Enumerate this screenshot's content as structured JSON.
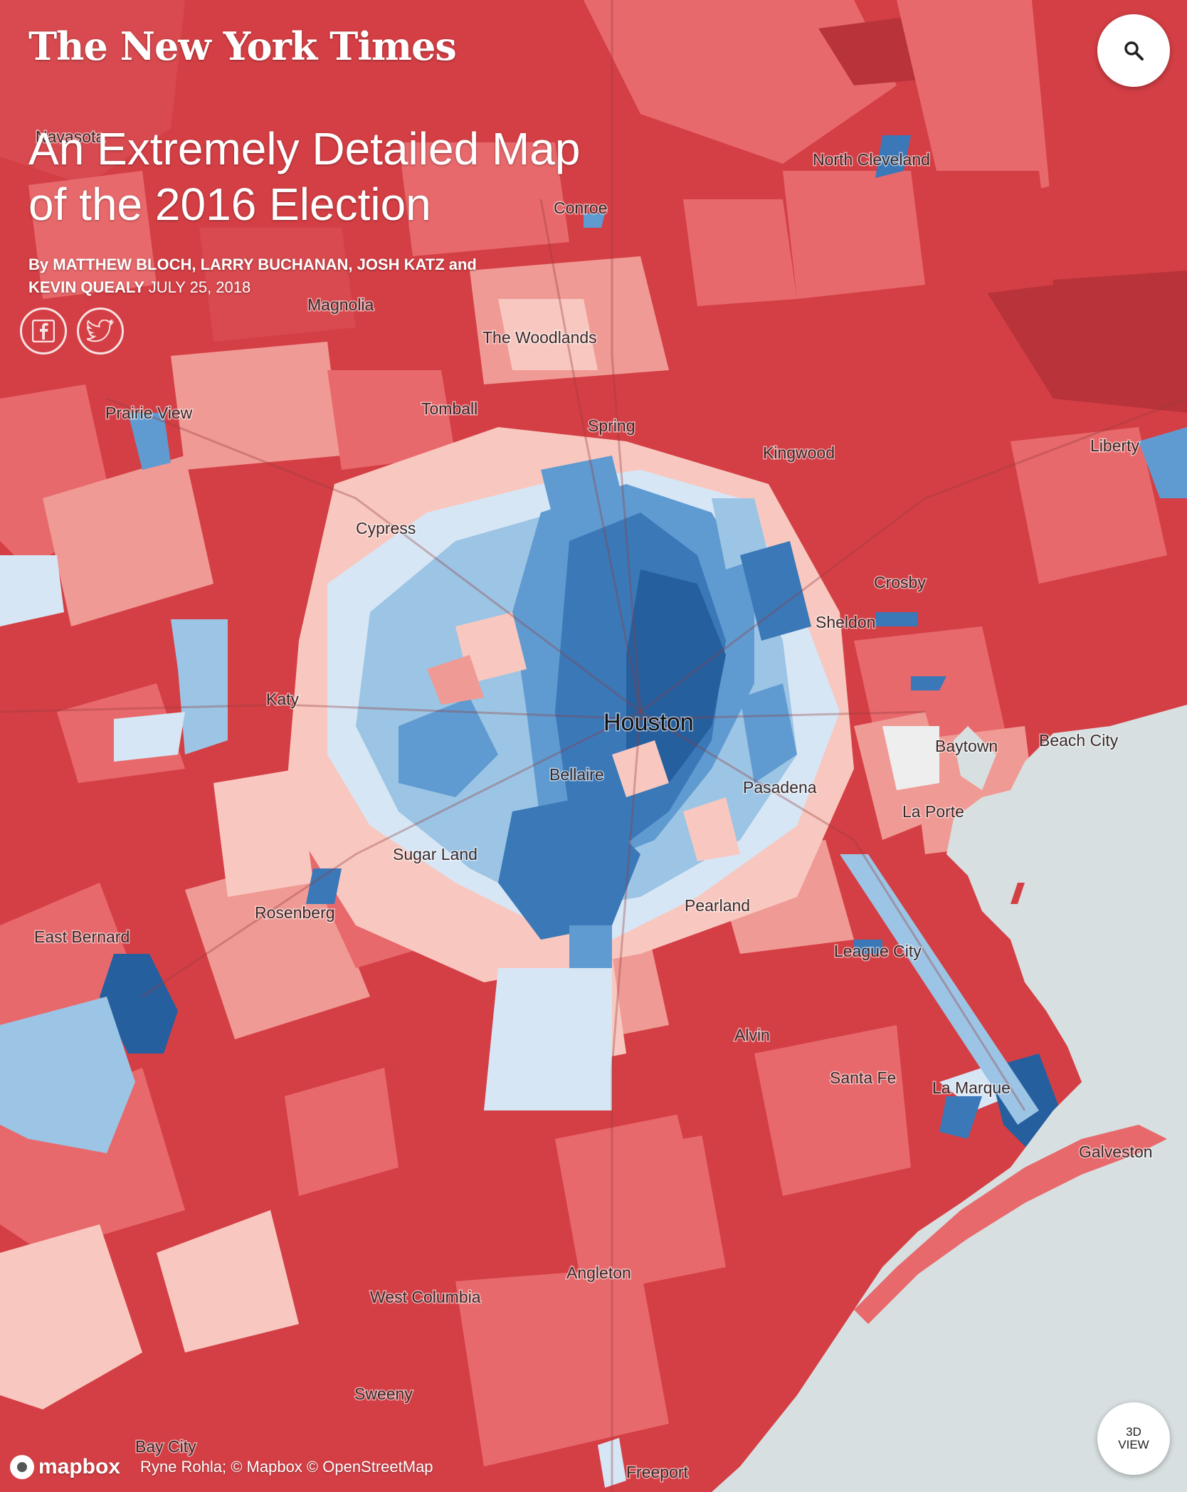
{
  "masthead": "The New York Times",
  "headline": "An Extremely Detailed Map of the 2016 Election",
  "byline": {
    "prefix": "By ",
    "authors": "MATTHEW BLOCH, LARRY BUCHANAN, JOSH KATZ and KEVIN QUEALY",
    "date": "JULY 25, 2018"
  },
  "social": {
    "facebook_icon": "facebook-icon",
    "twitter_icon": "twitter-icon"
  },
  "controls": {
    "search_icon": "search-icon",
    "view3d_line1": "3D",
    "view3d_line2": "VIEW"
  },
  "attribution": {
    "logo": "mapbox",
    "credit": "Ryne Rohla; © Mapbox © OpenStreetMap"
  },
  "colors": {
    "water": "#d7dfe1",
    "strong_rep": "#b9343a",
    "rep": "#d43f45",
    "lean_rep": "#e8696c",
    "slight_rep": "#f09a95",
    "weak_rep": "#f8c8c0",
    "weak_dem": "#d6e6f5",
    "slight_dem": "#9cc4e4",
    "lean_dem": "#5f9bd1",
    "dem": "#3a78b8",
    "strong_dem": "#265f9e"
  },
  "places": [
    {
      "name": "Navasota"
    },
    {
      "name": "North Cleveland"
    },
    {
      "name": "Conroe"
    },
    {
      "name": "Magnolia"
    },
    {
      "name": "The Woodlands"
    },
    {
      "name": "Prairie View"
    },
    {
      "name": "Tomball"
    },
    {
      "name": "Spring"
    },
    {
      "name": "Kingwood"
    },
    {
      "name": "Liberty"
    },
    {
      "name": "Cypress"
    },
    {
      "name": "Crosby"
    },
    {
      "name": "Sheldon"
    },
    {
      "name": "Katy"
    },
    {
      "name": "Houston"
    },
    {
      "name": "Baytown"
    },
    {
      "name": "Beach City"
    },
    {
      "name": "Bellaire"
    },
    {
      "name": "Pasadena"
    },
    {
      "name": "La Porte"
    },
    {
      "name": "Sugar Land"
    },
    {
      "name": "Rosenberg"
    },
    {
      "name": "Pearland"
    },
    {
      "name": "East Bernard"
    },
    {
      "name": "League City"
    },
    {
      "name": "Alvin"
    },
    {
      "name": "Santa Fe"
    },
    {
      "name": "La Marque"
    },
    {
      "name": "Galveston"
    },
    {
      "name": "Angleton"
    },
    {
      "name": "West Columbia"
    },
    {
      "name": "Sweeny"
    },
    {
      "name": "Bay City"
    },
    {
      "name": "Freeport"
    }
  ]
}
